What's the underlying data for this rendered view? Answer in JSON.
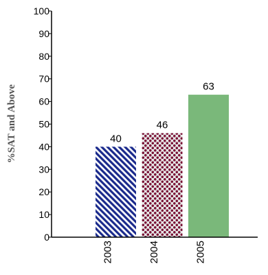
{
  "chart_data": {
    "type": "bar",
    "categories": [
      "2003",
      "2004",
      "2005"
    ],
    "values": [
      40,
      46,
      63
    ],
    "data_labels": [
      "40",
      "46",
      "63"
    ],
    "ylabel": "%SAT and Above",
    "xlabel": "",
    "ylim": [
      0,
      100
    ],
    "yticks": [
      0,
      10,
      20,
      30,
      40,
      50,
      60,
      70,
      80,
      90,
      100
    ],
    "grid": false,
    "legend": "none",
    "bar_styles": [
      {
        "pattern": "diagonal-stripes",
        "color": "#1a2a8c",
        "background": "#ffffff"
      },
      {
        "pattern": "dots",
        "color": "#7a1236",
        "background": "#e6e6e6"
      },
      {
        "pattern": "solid",
        "color": "#7ab87a"
      }
    ]
  }
}
